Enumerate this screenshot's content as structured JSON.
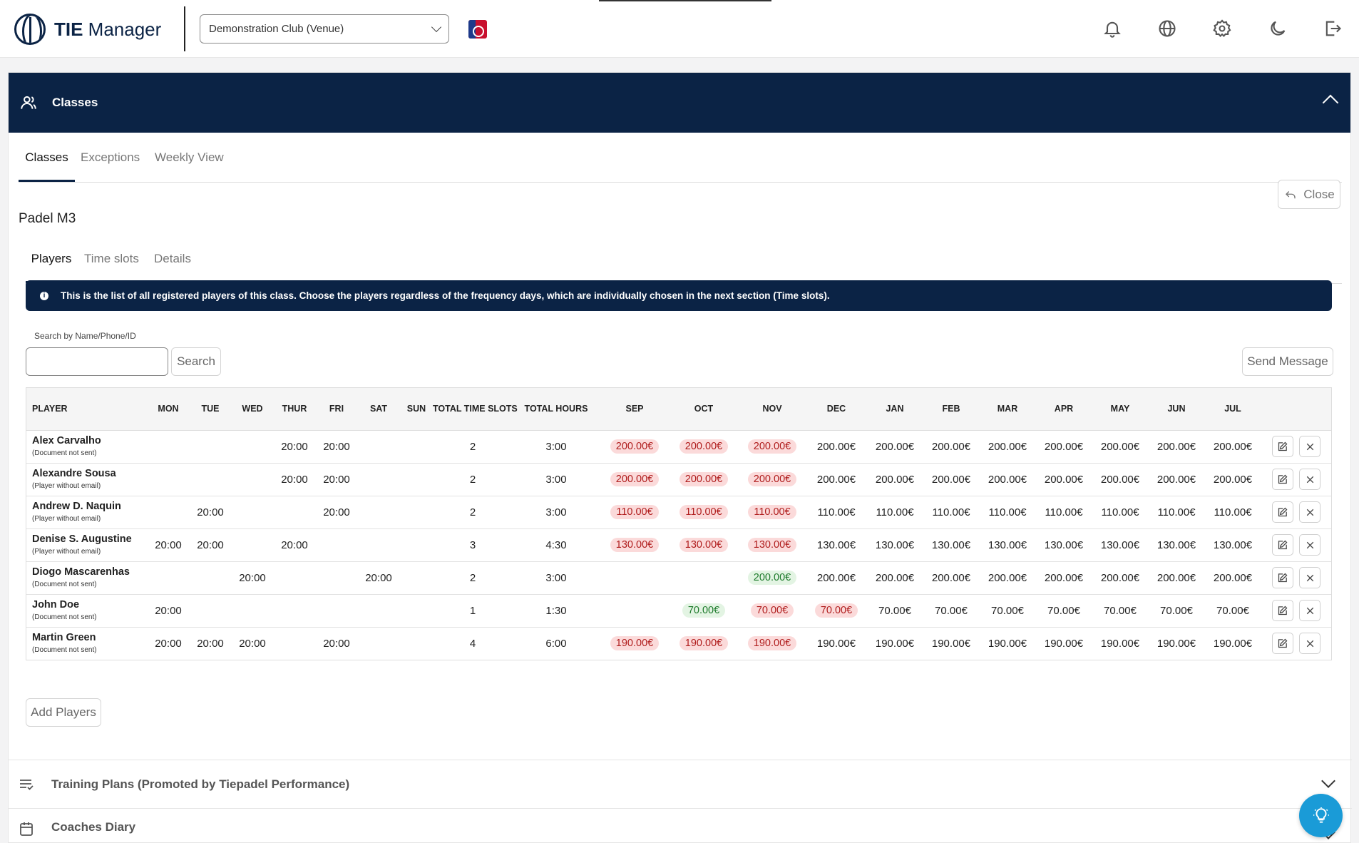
{
  "app": {
    "name_bold": "TIE",
    "name_rest": " Manager"
  },
  "venue": {
    "selected": "Demonstration Club (Venue)"
  },
  "panel": {
    "title": "Classes"
  },
  "tabs": [
    {
      "label": "Classes"
    },
    {
      "label": "Exceptions"
    },
    {
      "label": "Weekly View"
    }
  ],
  "close_label": "Close",
  "class_name": "Padel M3",
  "subtabs": [
    {
      "label": "Players"
    },
    {
      "label": "Time slots"
    },
    {
      "label": "Details"
    }
  ],
  "info_text": "This is the list of all registered players of this class. Choose the players regardless of the frequency days, which are individually chosen in the next section (Time slots).",
  "search": {
    "label": "Search by Name/Phone/ID",
    "placeholder": "",
    "button": "Search"
  },
  "send_message_label": "Send Message",
  "table": {
    "headers": [
      "PLAYER",
      "MON",
      "TUE",
      "WED",
      "THUR",
      "FRI",
      "SAT",
      "SUN",
      "TOTAL TIME SLOTS",
      "TOTAL HOURS",
      "SEP",
      "OCT",
      "NOV",
      "DEC",
      "JAN",
      "FEB",
      "MAR",
      "APR",
      "MAY",
      "JUN",
      "JUL",
      ""
    ],
    "rows": [
      {
        "name": "Alex Carvalho",
        "note": "(Document not sent)",
        "days": [
          "",
          "",
          "",
          "20:00",
          "20:00",
          "",
          ""
        ],
        "slots": "2",
        "hours": "3:00",
        "months": [
          {
            "v": "200.00€",
            "s": "red"
          },
          {
            "v": "200.00€",
            "s": "red"
          },
          {
            "v": "200.00€",
            "s": "red"
          },
          {
            "v": "200.00€",
            "s": ""
          },
          {
            "v": "200.00€",
            "s": ""
          },
          {
            "v": "200.00€",
            "s": ""
          },
          {
            "v": "200.00€",
            "s": ""
          },
          {
            "v": "200.00€",
            "s": ""
          },
          {
            "v": "200.00€",
            "s": ""
          },
          {
            "v": "200.00€",
            "s": ""
          },
          {
            "v": "200.00€",
            "s": ""
          }
        ]
      },
      {
        "name": "Alexandre Sousa",
        "note": "(Player without email)",
        "days": [
          "",
          "",
          "",
          "20:00",
          "20:00",
          "",
          ""
        ],
        "slots": "2",
        "hours": "3:00",
        "months": [
          {
            "v": "200.00€",
            "s": "red"
          },
          {
            "v": "200.00€",
            "s": "red"
          },
          {
            "v": "200.00€",
            "s": "red"
          },
          {
            "v": "200.00€",
            "s": ""
          },
          {
            "v": "200.00€",
            "s": ""
          },
          {
            "v": "200.00€",
            "s": ""
          },
          {
            "v": "200.00€",
            "s": ""
          },
          {
            "v": "200.00€",
            "s": ""
          },
          {
            "v": "200.00€",
            "s": ""
          },
          {
            "v": "200.00€",
            "s": ""
          },
          {
            "v": "200.00€",
            "s": ""
          }
        ]
      },
      {
        "name": "Andrew D. Naquin",
        "note": "(Player without email)",
        "days": [
          "",
          "20:00",
          "",
          "",
          "20:00",
          "",
          ""
        ],
        "slots": "2",
        "hours": "3:00",
        "months": [
          {
            "v": "110.00€",
            "s": "red"
          },
          {
            "v": "110.00€",
            "s": "red"
          },
          {
            "v": "110.00€",
            "s": "red"
          },
          {
            "v": "110.00€",
            "s": ""
          },
          {
            "v": "110.00€",
            "s": ""
          },
          {
            "v": "110.00€",
            "s": ""
          },
          {
            "v": "110.00€",
            "s": ""
          },
          {
            "v": "110.00€",
            "s": ""
          },
          {
            "v": "110.00€",
            "s": ""
          },
          {
            "v": "110.00€",
            "s": ""
          },
          {
            "v": "110.00€",
            "s": ""
          }
        ]
      },
      {
        "name": "Denise S. Augustine",
        "note": "(Player without email)",
        "days": [
          "20:00",
          "20:00",
          "",
          "20:00",
          "",
          "",
          ""
        ],
        "slots": "3",
        "hours": "4:30",
        "months": [
          {
            "v": "130.00€",
            "s": "red"
          },
          {
            "v": "130.00€",
            "s": "red"
          },
          {
            "v": "130.00€",
            "s": "red"
          },
          {
            "v": "130.00€",
            "s": ""
          },
          {
            "v": "130.00€",
            "s": ""
          },
          {
            "v": "130.00€",
            "s": ""
          },
          {
            "v": "130.00€",
            "s": ""
          },
          {
            "v": "130.00€",
            "s": ""
          },
          {
            "v": "130.00€",
            "s": ""
          },
          {
            "v": "130.00€",
            "s": ""
          },
          {
            "v": "130.00€",
            "s": ""
          }
        ]
      },
      {
        "name": "Diogo Mascarenhas",
        "note": "(Document not sent)",
        "days": [
          "",
          "",
          "20:00",
          "",
          "",
          "20:00",
          ""
        ],
        "slots": "2",
        "hours": "3:00",
        "months": [
          {
            "v": "",
            "s": ""
          },
          {
            "v": "",
            "s": ""
          },
          {
            "v": "200.00€",
            "s": "green"
          },
          {
            "v": "200.00€",
            "s": ""
          },
          {
            "v": "200.00€",
            "s": ""
          },
          {
            "v": "200.00€",
            "s": ""
          },
          {
            "v": "200.00€",
            "s": ""
          },
          {
            "v": "200.00€",
            "s": ""
          },
          {
            "v": "200.00€",
            "s": ""
          },
          {
            "v": "200.00€",
            "s": ""
          },
          {
            "v": "200.00€",
            "s": ""
          }
        ]
      },
      {
        "name": "John Doe",
        "note": "(Document not sent)",
        "days": [
          "20:00",
          "",
          "",
          "",
          "",
          "",
          ""
        ],
        "slots": "1",
        "hours": "1:30",
        "months": [
          {
            "v": "",
            "s": ""
          },
          {
            "v": "70.00€",
            "s": "green"
          },
          {
            "v": "70.00€",
            "s": "red"
          },
          {
            "v": "70.00€",
            "s": "red"
          },
          {
            "v": "70.00€",
            "s": ""
          },
          {
            "v": "70.00€",
            "s": ""
          },
          {
            "v": "70.00€",
            "s": ""
          },
          {
            "v": "70.00€",
            "s": ""
          },
          {
            "v": "70.00€",
            "s": ""
          },
          {
            "v": "70.00€",
            "s": ""
          },
          {
            "v": "70.00€",
            "s": ""
          }
        ]
      },
      {
        "name": "Martin Green",
        "note": "(Document not sent)",
        "days": [
          "20:00",
          "20:00",
          "20:00",
          "",
          "20:00",
          "",
          ""
        ],
        "slots": "4",
        "hours": "6:00",
        "months": [
          {
            "v": "190.00€",
            "s": "red"
          },
          {
            "v": "190.00€",
            "s": "red"
          },
          {
            "v": "190.00€",
            "s": "red"
          },
          {
            "v": "190.00€",
            "s": ""
          },
          {
            "v": "190.00€",
            "s": ""
          },
          {
            "v": "190.00€",
            "s": ""
          },
          {
            "v": "190.00€",
            "s": ""
          },
          {
            "v": "190.00€",
            "s": ""
          },
          {
            "v": "190.00€",
            "s": ""
          },
          {
            "v": "190.00€",
            "s": ""
          },
          {
            "v": "190.00€",
            "s": ""
          }
        ]
      }
    ]
  },
  "add_players_label": "Add Players",
  "sections": [
    {
      "label": "Training Plans (Promoted by Tiepadel Performance)"
    },
    {
      "label": "Coaches Diary"
    }
  ],
  "colors": {
    "brand": "#0b2345",
    "unpaid_bg": "#fbdada",
    "paid_bg": "#e3f4e3",
    "help_button": "#1a9bd7"
  },
  "icons": [
    "bell-icon",
    "globe-icon",
    "gear-icon",
    "moon-icon",
    "logout-icon",
    "users-icon",
    "edit-icon",
    "close-icon",
    "lightbulb-icon"
  ]
}
